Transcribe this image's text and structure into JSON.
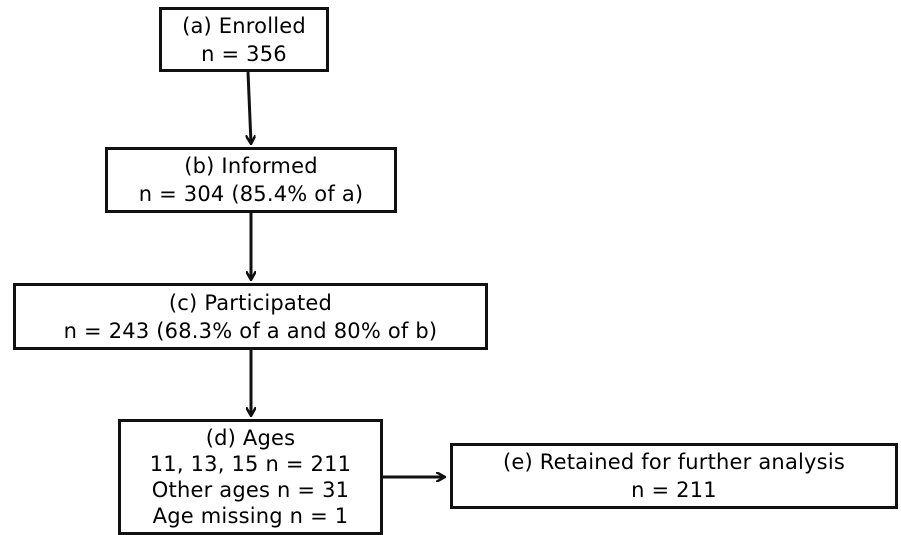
{
  "nodes": {
    "a": {
      "lines": [
        "(a) Enrolled",
        "n = 356"
      ]
    },
    "b": {
      "lines": [
        "(b) Informed",
        "n = 304 (85.4% of a)"
      ]
    },
    "c": {
      "lines": [
        "(c) Participated",
        "n = 243 (68.3% of a and 80% of b)"
      ]
    },
    "d": {
      "lines": [
        "(d) Ages",
        "11, 13, 15 n = 211",
        "Other ages n = 31",
        "Age missing n = 1"
      ]
    },
    "e": {
      "lines": [
        "(e) Retained for further analysis",
        "n = 211"
      ]
    }
  },
  "edges": [
    {
      "from": "a",
      "to": "b"
    },
    {
      "from": "b",
      "to": "c"
    },
    {
      "from": "c",
      "to": "d"
    },
    {
      "from": "d",
      "to": "e"
    }
  ],
  "colors": {
    "stroke": "#111111",
    "background": "#ffffff"
  }
}
